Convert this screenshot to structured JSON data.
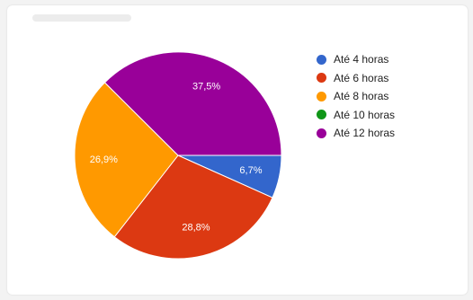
{
  "chart_data": {
    "type": "pie",
    "title": "",
    "slices": [
      {
        "label": "Até 4 horas",
        "value": 6.7,
        "value_label": "6,7%",
        "color": "#3366cc"
      },
      {
        "label": "Até 6 horas",
        "value": 28.8,
        "value_label": "28,8%",
        "color": "#dc3912"
      },
      {
        "label": "Até 8 horas",
        "value": 26.9,
        "value_label": "26,9%",
        "color": "#ff9900"
      },
      {
        "label": "Até 10 horas",
        "value": 0,
        "value_label": "",
        "color": "#109618"
      },
      {
        "label": "Até 12 horas",
        "value": 37.5,
        "value_label": "37,5%",
        "color": "#990099"
      }
    ],
    "legend_position": "right"
  }
}
